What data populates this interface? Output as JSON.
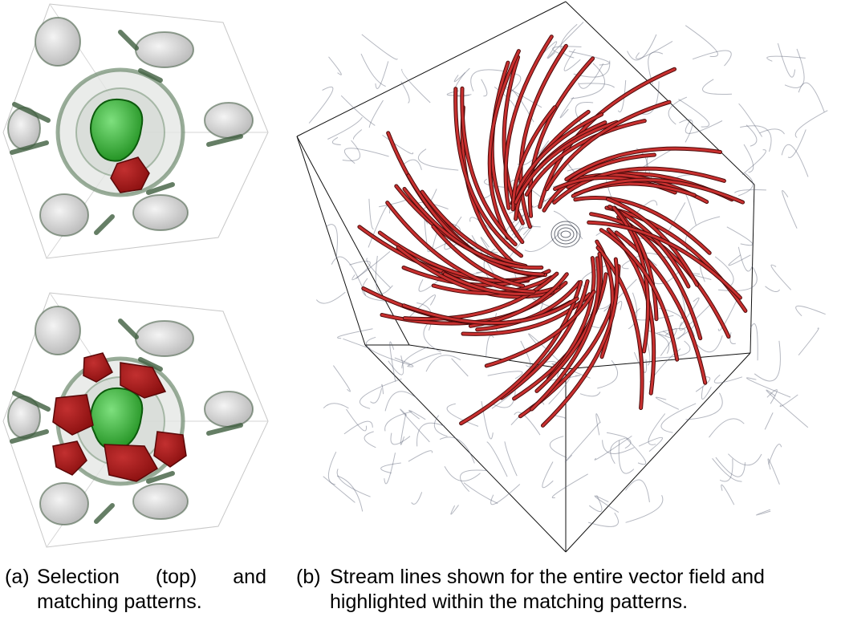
{
  "figure": {
    "subfigures": [
      {
        "tag": "(a)",
        "caption_words": [
          "Selection",
          "(top)",
          "and"
        ],
        "caption_line2": "matching patterns."
      },
      {
        "tag": "(b)",
        "caption_line1": "Stream lines shown for the entire vector field and",
        "caption_line2": "highlighted within the matching patterns."
      }
    ],
    "colors": {
      "selection": "#1f8f1f",
      "match": "#8b1010",
      "streamline_highlight": "#c8302f",
      "streamline_context": "#5a6275",
      "blob": "#d8d8d8",
      "blob_edge": "#3f5a3f"
    }
  }
}
